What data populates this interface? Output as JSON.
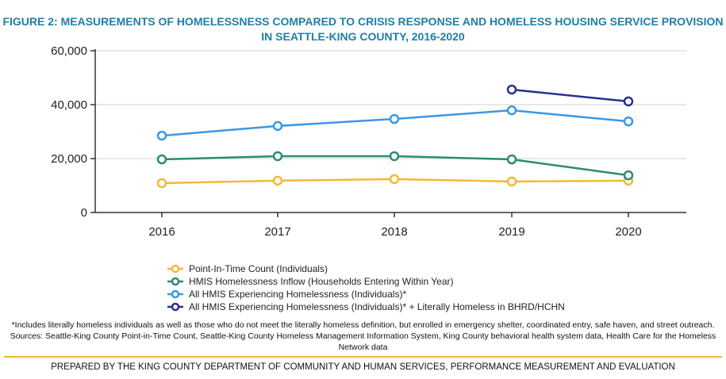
{
  "chart_data": {
    "type": "line",
    "title": "FIGURE 2: MEASUREMENTS OF HOMELESSNESS COMPARED TO CRISIS RESPONSE AND HOMELESS HOUSING SERVICE PROVISION IN SEATTLE-KING COUNTY, 2016-2020",
    "categories": [
      "2016",
      "2017",
      "2018",
      "2019",
      "2020"
    ],
    "ylim": [
      0,
      60000
    ],
    "yticks": [
      0,
      20000,
      40000,
      60000
    ],
    "ytick_labels": [
      "0",
      "20,000",
      "40,000",
      "60,000"
    ],
    "grid": true,
    "legend": "bottom",
    "series": [
      {
        "name": "Point-In-Time Count (Individuals)",
        "color": "#f5b836",
        "values": [
          10900,
          11800,
          12400,
          11500,
          11800
        ]
      },
      {
        "name": "HMIS Homelessness Inflow (Households Entering Within Year)",
        "color": "#2e8b73",
        "values": [
          19700,
          20900,
          20900,
          19700,
          13800
        ]
      },
      {
        "name": "All HMIS Experiencing Homelessness (Individuals)*",
        "color": "#3a98e6",
        "values": [
          28500,
          32100,
          34700,
          37900,
          33800
        ]
      },
      {
        "name": "All HMIS Experiencing Homelessness (Individuals)* + Literally Homeless in BHRD/HCHN",
        "color": "#27308f",
        "values": [
          null,
          null,
          null,
          45600,
          41200
        ]
      }
    ]
  },
  "footnote": "*Includes literally homeless individuals as well as those who do not meet the literally homeless definition, but enrolled in emergency shelter, coordinated entry, safe haven, and street outreach. Sources: Seattle-King County Point-in-Time Count, Seattle-King County Homeless Management Information System, King County behavioral health system data, Health Care for the Homeless Network data",
  "prepared_by": "PREPARED BY THE KING COUNTY DEPARTMENT OF COMMUNITY AND HUMAN SERVICES, PERFORMANCE MEASUREMENT AND EVALUATION",
  "rule_color": "#f0b73a"
}
